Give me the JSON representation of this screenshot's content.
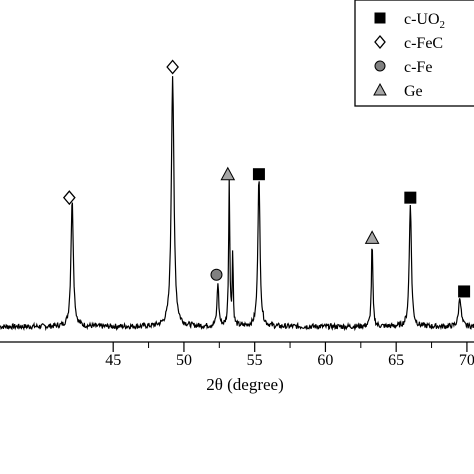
{
  "chart_data": {
    "type": "line",
    "title": "",
    "xlabel": "2θ (degree)",
    "ylabel": "",
    "xlim": [
      37.0,
      70.5
    ],
    "ylim": [
      0,
      100
    ],
    "xticks": [
      45,
      50,
      55,
      60,
      65,
      70
    ],
    "xtick_labels": [
      "45",
      "50",
      "55",
      "60",
      "65",
      "70"
    ],
    "grid": false,
    "legend_position": "top-right",
    "series": [
      {
        "peaks": [
          {
            "x": 42.1,
            "height": 38,
            "width": 0.1
          },
          {
            "x": 49.2,
            "height": 75,
            "width": 0.11
          },
          {
            "x": 52.4,
            "height": 13,
            "width": 0.07
          },
          {
            "x": 53.2,
            "height": 44,
            "width": 0.05
          },
          {
            "x": 53.45,
            "height": 22,
            "width": 0.04
          },
          {
            "x": 55.3,
            "height": 45,
            "width": 0.09
          },
          {
            "x": 63.3,
            "height": 25,
            "width": 0.06
          },
          {
            "x": 66.0,
            "height": 37,
            "width": 0.09
          },
          {
            "x": 69.5,
            "height": 9,
            "width": 0.1
          }
        ],
        "baseline": 2.5
      }
    ],
    "legend": [
      {
        "label": "c-UO",
        "sub": "2",
        "marker": "square"
      },
      {
        "label": "c-FeC",
        "sub": "",
        "marker": "diamond"
      },
      {
        "label": "c-Fe",
        "sub": "",
        "marker": "circle"
      },
      {
        "label": "Ge",
        "sub": "",
        "marker": "triangle"
      }
    ],
    "annotations": [
      {
        "marker": "diamond",
        "x": 41.9,
        "y": 41
      },
      {
        "marker": "diamond",
        "x": 49.2,
        "y": 80
      },
      {
        "marker": "circle",
        "x": 52.3,
        "y": 18
      },
      {
        "marker": "triangle",
        "x": 53.1,
        "y": 48
      },
      {
        "marker": "square",
        "x": 55.3,
        "y": 48
      },
      {
        "marker": "triangle",
        "x": 63.3,
        "y": 29
      },
      {
        "marker": "square",
        "x": 66.0,
        "y": 41
      },
      {
        "marker": "square",
        "x": 69.8,
        "y": 13
      }
    ],
    "colors": {
      "line": "#000000",
      "circle_fill": "#808080",
      "triangle_fill": "#a6a6a6",
      "square_fill": "#000000",
      "diamond_fill": "#ffffff"
    }
  }
}
